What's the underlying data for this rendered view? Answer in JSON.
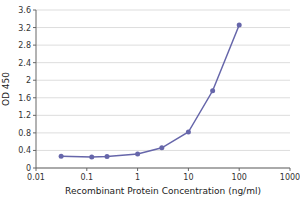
{
  "chart_data": {
    "type": "line",
    "xlabel": "Recombinant Protein Concentration (ng/ml)",
    "ylabel": "OD 450",
    "x": [
      0.03125,
      0.125,
      0.25,
      1.0,
      3.0,
      10.0,
      30.0,
      100.0
    ],
    "values": [
      0.27,
      0.25,
      0.26,
      0.32,
      0.46,
      0.82,
      1.76,
      3.26
    ],
    "color": "#6666aa",
    "marker": "circle",
    "log": "x",
    "xlim": [
      0.01,
      1000
    ],
    "xticks": [
      0.01,
      0.1,
      1,
      10,
      100,
      1000
    ],
    "ylim": [
      0,
      3.6
    ],
    "yticks": [
      0,
      0.4,
      0.8,
      1.2,
      1.6,
      2.0,
      2.4,
      2.8,
      3.2,
      3.6
    ],
    "grid": "y"
  }
}
